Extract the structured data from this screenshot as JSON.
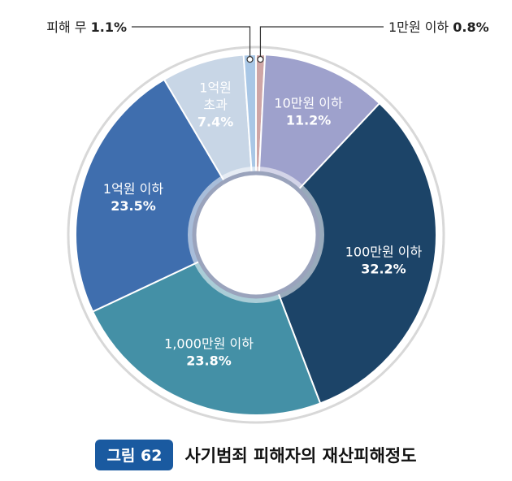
{
  "chart_data": {
    "type": "donut",
    "title": "",
    "categories": [
      "1만원 이하",
      "10만원 이하",
      "100만원 이하",
      "1,000만원 이하",
      "1억원 이하",
      "1억원 초과",
      "피해 무"
    ],
    "values": [
      0.8,
      11.2,
      32.2,
      23.8,
      23.5,
      7.4,
      1.1
    ],
    "labels": [
      "1만원 이하",
      "10만원 이하",
      "100만원 이하",
      "1,000만원 이하",
      "1억원 이하",
      "1억원\n초과",
      "피해 무"
    ],
    "value_labels": [
      "0.8%",
      "11.2%",
      "32.2%",
      "23.8%",
      "23.5%",
      "7.4%",
      "1.1%"
    ],
    "colors": [
      "#cfa6a6",
      "#9ea1cc",
      "#1c4468",
      "#4490a6",
      "#3f6eae",
      "#c8d6e6",
      "#a9c7e6"
    ],
    "label_text_colors": [
      "#222222",
      "#ffffff",
      "#ffffff",
      "#ffffff",
      "#ffffff",
      "#ffffff",
      "#222222"
    ],
    "callouts": [
      {
        "text": "1만원 이하",
        "value": "0.8%"
      },
      {
        "text": "피해 무",
        "value": "1.1%"
      }
    ]
  },
  "caption": {
    "badge": "그림 62",
    "title": "사기범죄 피해자의 재산피해정도"
  }
}
